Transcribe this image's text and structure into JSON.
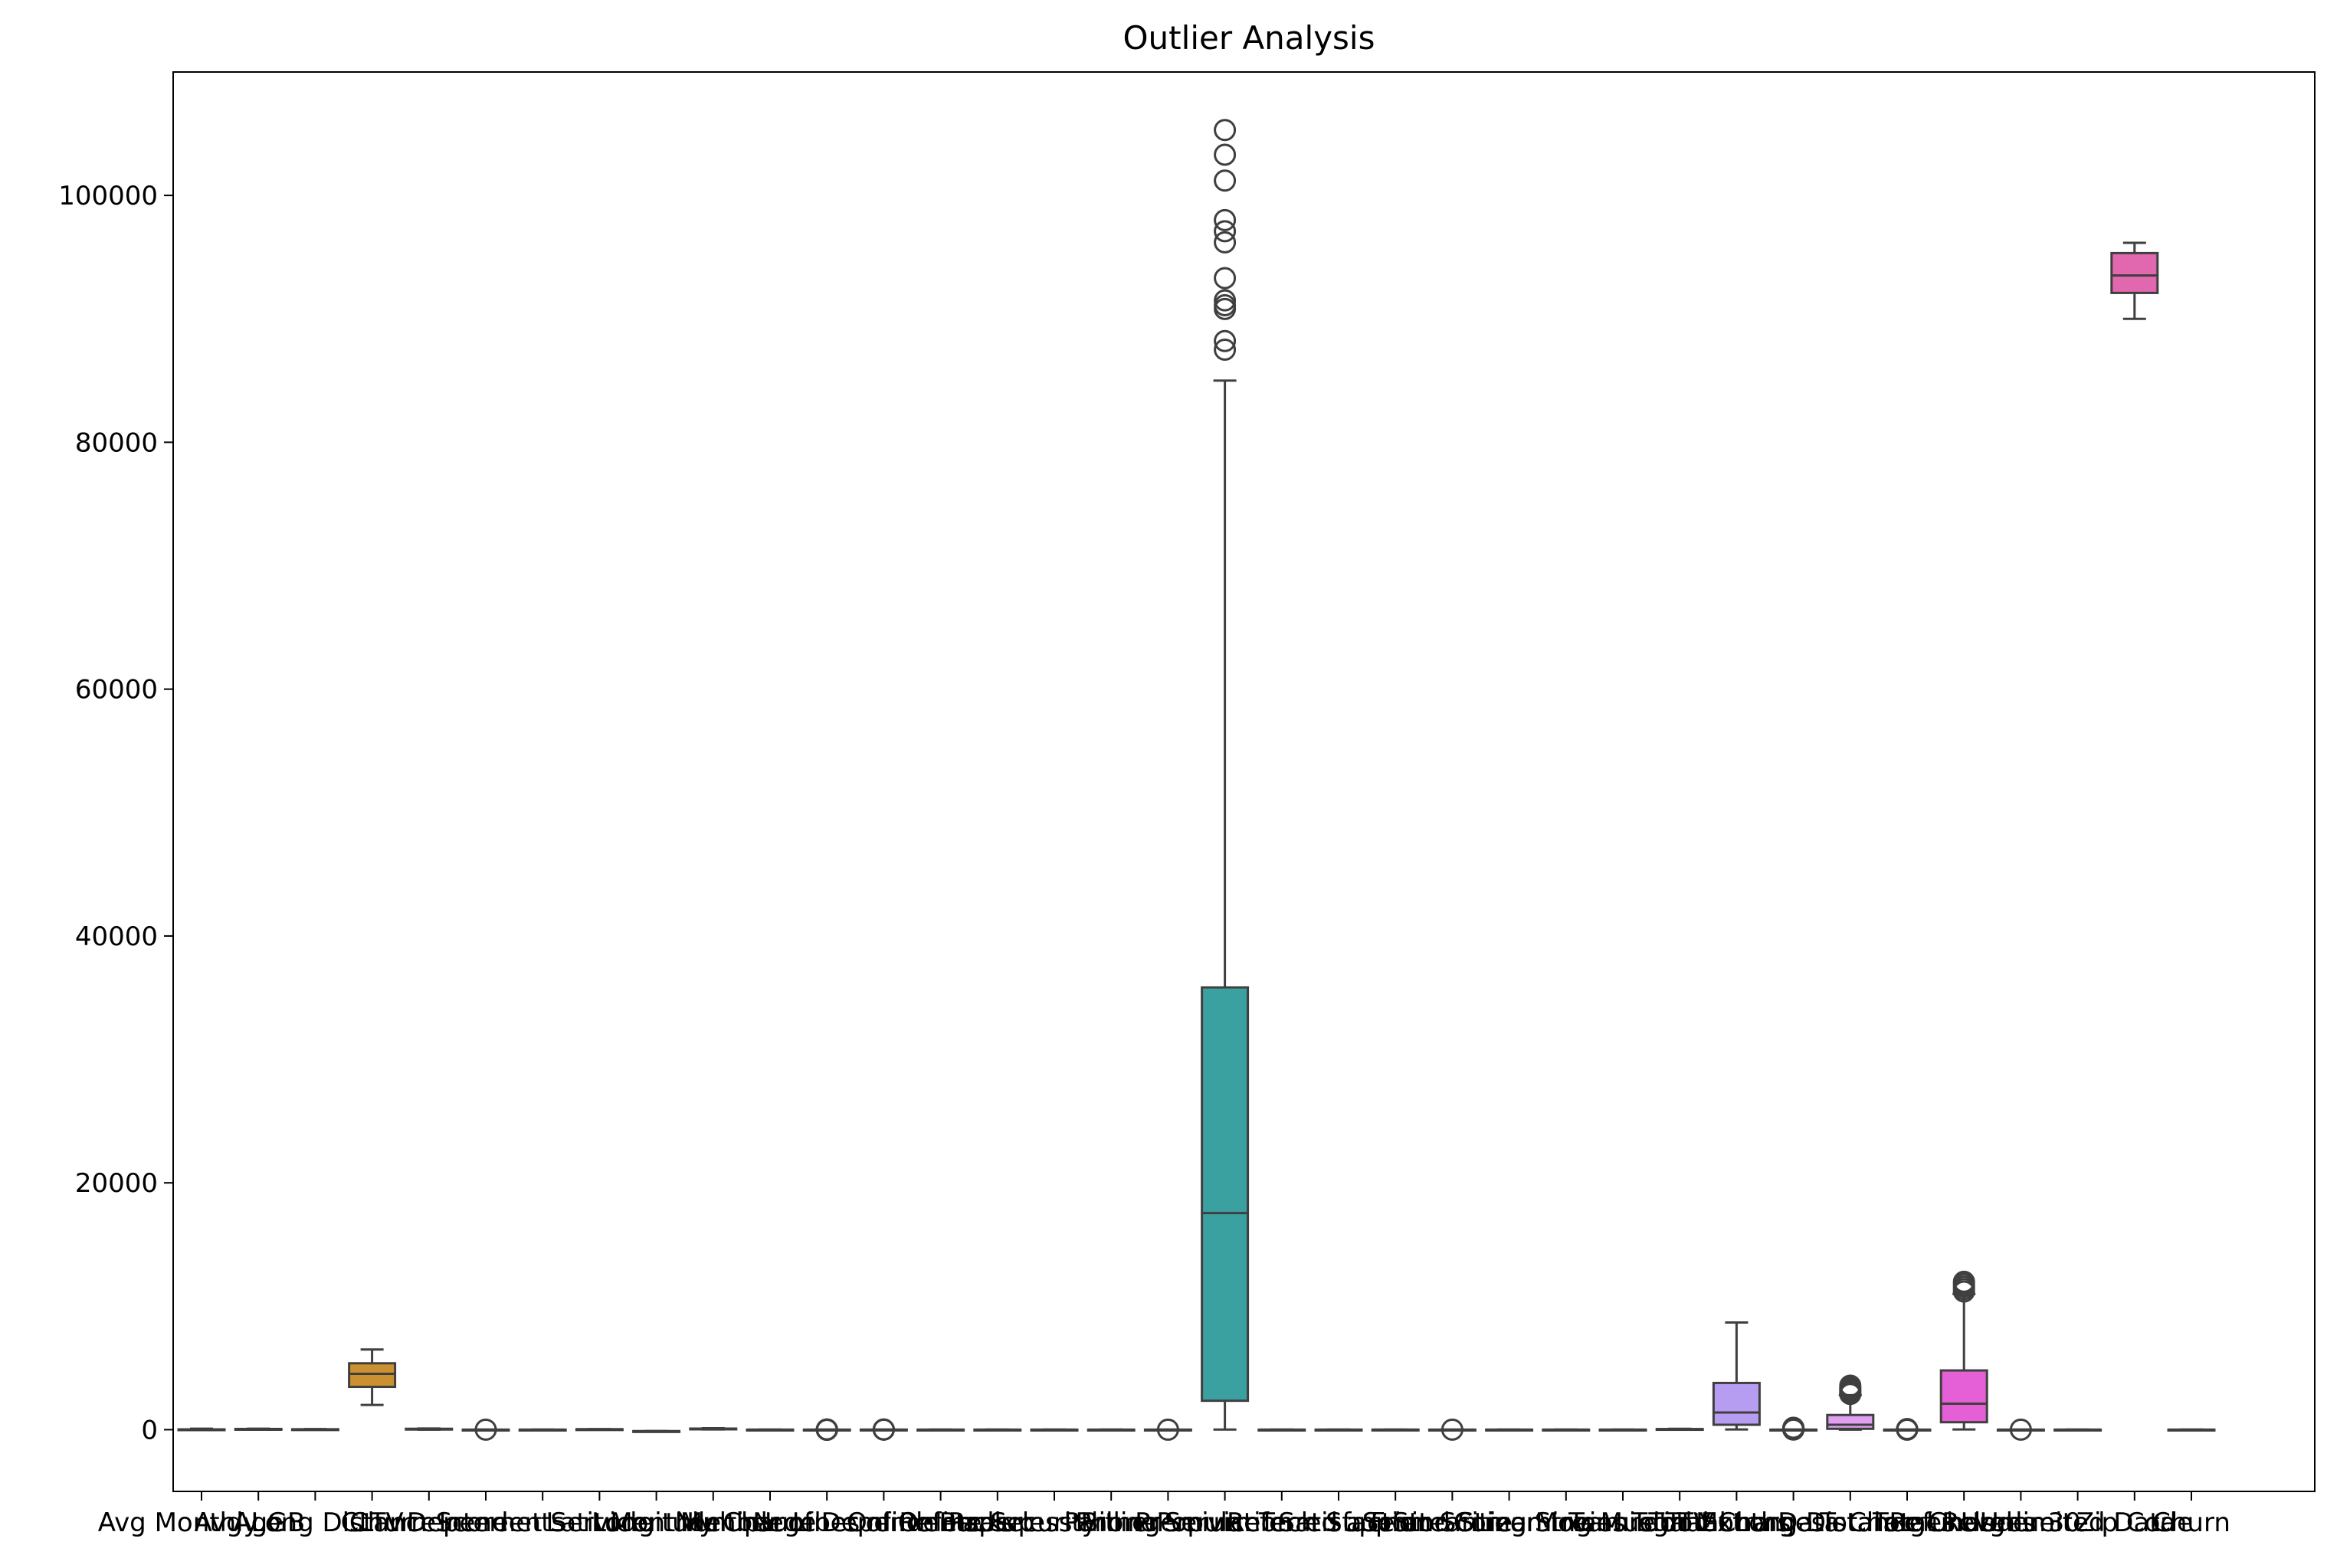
{
  "chart_data": {
    "type": "box",
    "title": "Outlier Analysis",
    "xlabel": "",
    "ylabel": "",
    "ylim": [
      -5000,
      110000
    ],
    "yticks": [
      0,
      20000,
      40000,
      60000,
      80000,
      100000
    ],
    "ytick_labels": [
      "0",
      "20000",
      "40000",
      "60000",
      "80000",
      "100000"
    ],
    "grid": false,
    "legend": "none",
    "categories": [
      "Avg Monthly GB",
      "Age",
      "Avg Long Distance",
      "CLTV",
      "Churn Score",
      "Dependents",
      "Internet Service",
      "Latitude",
      "Longitude",
      "Monthly Charge",
      "Multiple Lines",
      "Number of Dependents",
      "Number of Referrals",
      "Online Backup",
      "Online Security",
      "Paperless Billing",
      "Partner",
      "Phone Service",
      "Population",
      "Premium Tech Support",
      "Referred a Friend",
      "Satisfaction Score",
      "Senior Citizen",
      "Streaming Movies",
      "Streaming Music",
      "Streaming TV",
      "Tenure in Months",
      "Total Charges",
      "Total Extra Data Charges",
      "Total Long Distance Charges",
      "Total Refunds",
      "Total Revenue",
      "Under 30",
      "Unlimited Data",
      "Zip Code",
      "Churn"
    ],
    "boxes": [
      {
        "label": "Avg Monthly GB",
        "min": 0,
        "q1": 3,
        "median": 17,
        "q3": 27,
        "max": 85,
        "outliers": [],
        "color": "#f77189"
      },
      {
        "label": "Age",
        "min": 19,
        "q1": 32,
        "median": 46,
        "q3": 60,
        "max": 80,
        "outliers": [],
        "color": "#f37932"
      },
      {
        "label": "Avg Long Distance",
        "min": 0,
        "q1": 9,
        "median": 22,
        "q3": 36,
        "max": 50,
        "outliers": [],
        "color": "#e08a31"
      },
      {
        "label": "CLTV",
        "min": 2003,
        "q1": 3469,
        "median": 4527,
        "q3": 5380,
        "max": 6500,
        "outliers": [],
        "color": "#cb9131"
      },
      {
        "label": "Churn Score",
        "min": 5,
        "q1": 40,
        "median": 61,
        "q3": 75,
        "max": 96,
        "outliers": [],
        "color": "#b89a31"
      },
      {
        "label": "Dependents",
        "min": 0,
        "q1": 0,
        "median": 0,
        "q3": 0,
        "max": 0,
        "outliers": [
          1
        ],
        "color": "#a4a031"
      },
      {
        "label": "Internet Service",
        "min": 0,
        "q1": 1,
        "median": 1,
        "q3": 1,
        "max": 1,
        "outliers": [],
        "color": "#8ea531"
      },
      {
        "label": "Latitude",
        "min": 32,
        "q1": 34,
        "median": 36,
        "q3": 38,
        "max": 42,
        "outliers": [],
        "color": "#6ca931"
      },
      {
        "label": "Longitude",
        "min": -124,
        "q1": -121,
        "median": -119,
        "q3": -118,
        "max": -114,
        "outliers": [],
        "color": "#32b032"
      },
      {
        "label": "Monthly Charge",
        "min": 18,
        "q1": 35,
        "median": 70,
        "q3": 90,
        "max": 119,
        "outliers": [],
        "color": "#34ae63"
      },
      {
        "label": "Multiple Lines",
        "min": 0,
        "q1": 0,
        "median": 0,
        "q3": 1,
        "max": 1,
        "outliers": [],
        "color": "#35ac7d"
      },
      {
        "label": "Number of Dependents",
        "min": 0,
        "q1": 0,
        "median": 0,
        "q3": 0,
        "max": 0,
        "outliers": [
          1,
          2,
          3,
          4,
          5,
          6,
          7,
          8,
          9
        ],
        "color": "#36aa8f"
      },
      {
        "label": "Number of Referrals",
        "min": 0,
        "q1": 0,
        "median": 0,
        "q3": 3,
        "max": 7,
        "outliers": [
          8,
          9,
          10,
          11
        ],
        "color": "#37a99e"
      },
      {
        "label": "Online Backup",
        "min": 0,
        "q1": 0,
        "median": 0,
        "q3": 1,
        "max": 1,
        "outliers": [],
        "color": "#38a7ab"
      },
      {
        "label": "Online Security",
        "min": 0,
        "q1": 0,
        "median": 0,
        "q3": 1,
        "max": 1,
        "outliers": [],
        "color": "#39a6b7"
      },
      {
        "label": "Paperless Billing",
        "min": 0,
        "q1": 0,
        "median": 1,
        "q3": 1,
        "max": 1,
        "outliers": [],
        "color": "#3aa4c4"
      },
      {
        "label": "Partner",
        "min": 0,
        "q1": 0,
        "median": 0,
        "q3": 1,
        "max": 1,
        "outliers": [],
        "color": "#3ba1d3"
      },
      {
        "label": "Phone Service",
        "min": 1,
        "q1": 1,
        "median": 1,
        "q3": 1,
        "max": 1,
        "outliers": [
          0
        ],
        "color": "#3d9ce9"
      },
      {
        "label": "Population",
        "min": 11,
        "q1": 2344,
        "median": 17554,
        "q3": 35834,
        "max": 85000,
        "outliers": [
          87500,
          88200,
          90800,
          91100,
          91500,
          93300,
          96200,
          97100,
          98000,
          101200,
          103300,
          105300
        ],
        "color": "#3aa0a0"
      },
      {
        "label": "Premium Tech Support",
        "min": 0,
        "q1": 0,
        "median": 0,
        "q3": 1,
        "max": 1,
        "outliers": [],
        "color": "#6d93f4"
      },
      {
        "label": "Referred a Friend",
        "min": 0,
        "q1": 0,
        "median": 0,
        "q3": 1,
        "max": 1,
        "outliers": [],
        "color": "#8f8af4"
      },
      {
        "label": "Satisfaction Score",
        "min": 1,
        "q1": 3,
        "median": 3,
        "q3": 4,
        "max": 5,
        "outliers": [],
        "color": "#a781f4"
      },
      {
        "label": "Senior Citizen",
        "min": 0,
        "q1": 0,
        "median": 0,
        "q3": 0,
        "max": 0,
        "outliers": [
          1
        ],
        "color": "#be76f4"
      },
      {
        "label": "Streaming Movies",
        "min": 0,
        "q1": 0,
        "median": 0,
        "q3": 1,
        "max": 1,
        "outliers": [],
        "color": "#d86af4"
      },
      {
        "label": "Streaming Music",
        "min": 0,
        "q1": 0,
        "median": 0,
        "q3": 1,
        "max": 1,
        "outliers": [],
        "color": "#f35ef1"
      },
      {
        "label": "Streaming TV",
        "min": 0,
        "q1": 0,
        "median": 0,
        "q3": 1,
        "max": 1,
        "outliers": [],
        "color": "#f565d6"
      },
      {
        "label": "Tenure in Months",
        "min": 1,
        "q1": 9,
        "median": 29,
        "q3": 55,
        "max": 72,
        "outliers": [],
        "color": "#f56cc0"
      },
      {
        "label": "Total Charges",
        "min": 19,
        "q1": 400,
        "median": 1394,
        "q3": 3786,
        "max": 8684,
        "outliers": [],
        "color": "#b79df2"
      },
      {
        "label": "Total Extra Data Charges",
        "min": 0,
        "q1": 0,
        "median": 0,
        "q3": 0,
        "max": 0,
        "outliers": [
          10,
          20,
          30,
          40,
          50,
          60,
          70,
          80,
          90,
          100,
          110,
          120,
          130,
          140,
          150
        ],
        "color": "#f77189"
      },
      {
        "label": "Total Long Distance Charges",
        "min": 0,
        "q1": 70,
        "median": 401,
        "q3": 1191,
        "max": 2800,
        "outliers": [
          2900,
          3000,
          3100,
          3200,
          3300,
          3400,
          3564
        ],
        "color": "#e0a0f2"
      },
      {
        "label": "Total Refunds",
        "min": 0,
        "q1": 0,
        "median": 0,
        "q3": 0,
        "max": 0,
        "outliers": [
          5,
          10,
          20,
          30,
          40,
          49
        ],
        "color": "#f77189"
      },
      {
        "label": "Total Revenue",
        "min": 21,
        "q1": 605,
        "median": 2108,
        "q3": 4801,
        "max": 11000,
        "outliers": [
          11200,
          11400,
          11600,
          11800,
          11980
        ],
        "color": "#e55fd6"
      },
      {
        "label": "Under 30",
        "min": 0,
        "q1": 0,
        "median": 0,
        "q3": 0,
        "max": 0,
        "outliers": [
          1
        ],
        "color": "#f368b9"
      },
      {
        "label": "Unlimited Data",
        "min": 0,
        "q1": 0,
        "median": 1,
        "q3": 1,
        "max": 1,
        "outliers": [],
        "color": "#f56dae"
      },
      {
        "label": "Zip Code",
        "min": 90001,
        "q1": 92101,
        "median": 93518,
        "q3": 95329,
        "max": 96161,
        "outliers": [],
        "color": "#e167ae"
      },
      {
        "label": "Churn",
        "min": 0,
        "q1": 0,
        "median": 0,
        "q3": 1,
        "max": 1,
        "outliers": [],
        "color": "#f56ca3"
      }
    ]
  }
}
